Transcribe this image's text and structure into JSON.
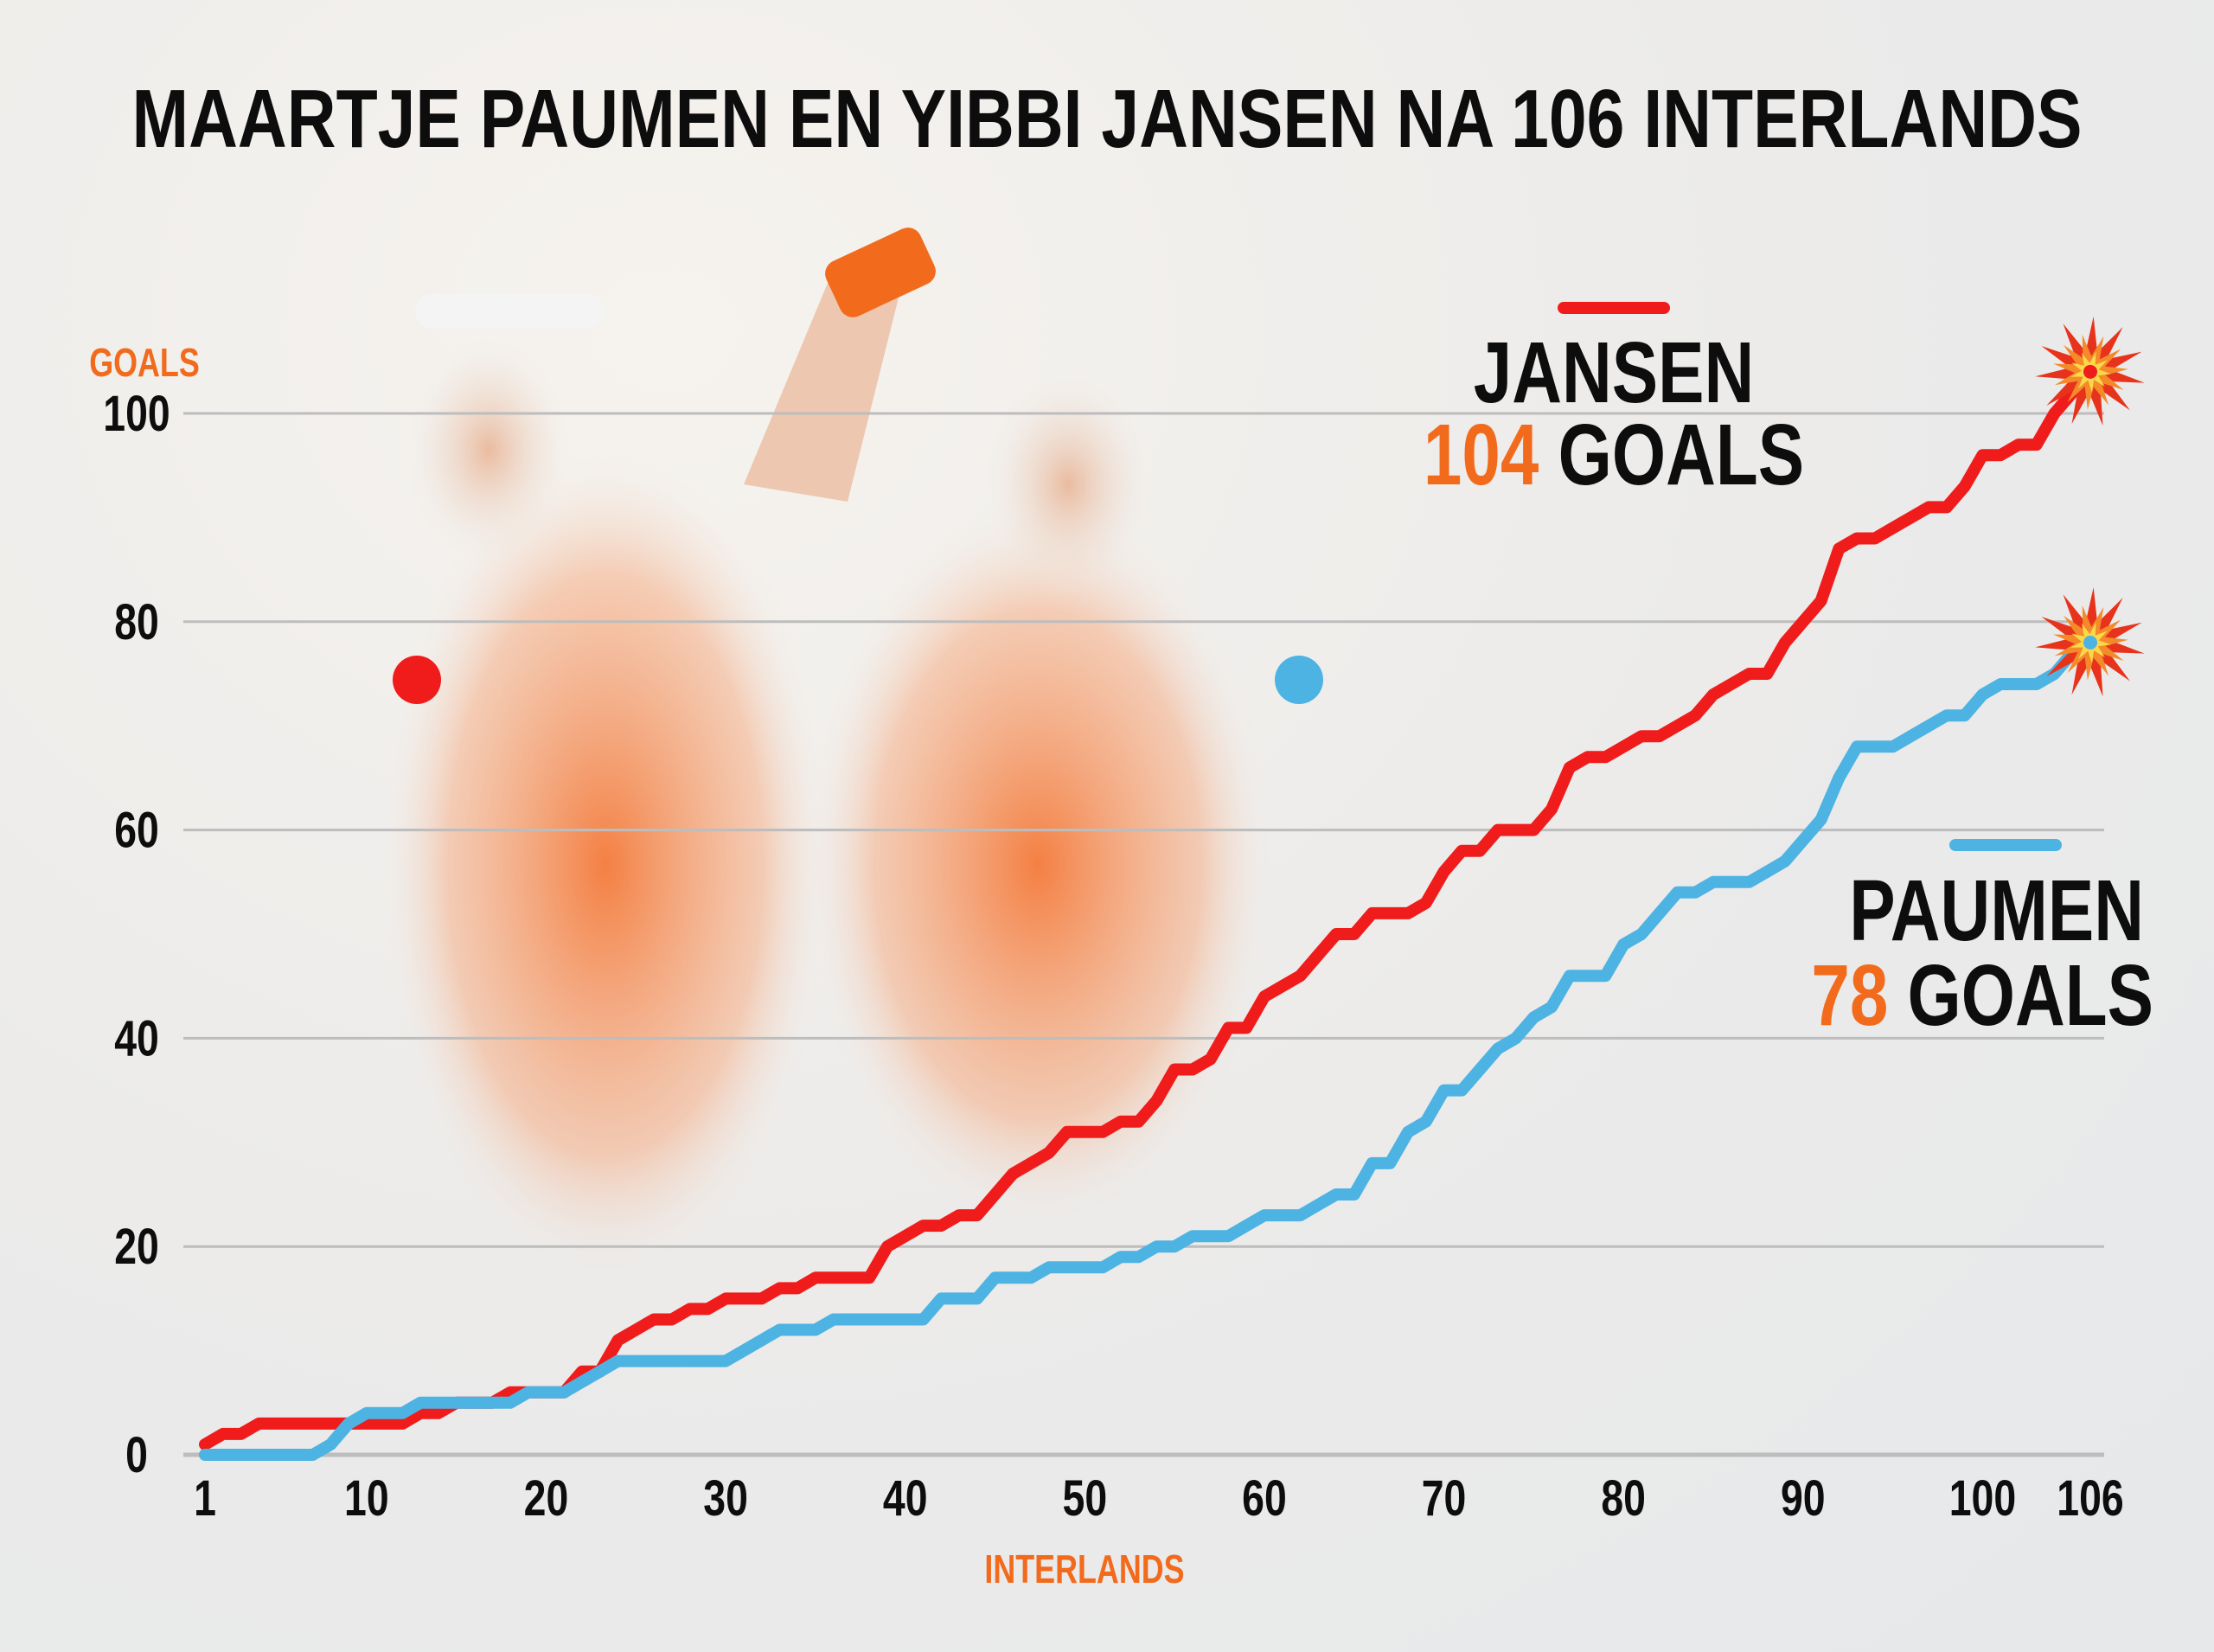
{
  "chart_data": {
    "type": "line",
    "title": "MAARTJE PAUMEN EN YIBBI JANSEN NA 106 INTERLANDS",
    "ylabel": "GOALS",
    "xlabel": "INTERLANDS",
    "ylim": [
      0,
      100
    ],
    "xlim": [
      1,
      106
    ],
    "yticks": [
      "0",
      "20",
      "40",
      "60",
      "80",
      "100"
    ],
    "xticks": [
      "1",
      "10",
      "20",
      "30",
      "40",
      "50",
      "60",
      "70",
      "80",
      "90",
      "100",
      "106"
    ],
    "grid": true,
    "series": [
      {
        "name": "JANSEN",
        "total": "104",
        "goals_label": "GOALS",
        "color": "#f01c1c",
        "values": [
          1,
          2,
          2,
          3,
          3,
          3,
          3,
          3,
          3,
          3,
          3,
          3,
          4,
          4,
          5,
          5,
          5,
          6,
          6,
          6,
          6,
          8,
          8,
          11,
          12,
          13,
          13,
          14,
          14,
          15,
          15,
          15,
          16,
          16,
          17,
          17,
          17,
          17,
          20,
          21,
          22,
          22,
          23,
          23,
          25,
          27,
          28,
          29,
          31,
          31,
          31,
          32,
          32,
          34,
          37,
          37,
          38,
          41,
          41,
          44,
          45,
          46,
          48,
          50,
          50,
          52,
          52,
          52,
          53,
          56,
          58,
          58,
          60,
          60,
          60,
          62,
          66,
          67,
          67,
          68,
          69,
          69,
          70,
          71,
          73,
          74,
          75,
          75,
          78,
          80,
          82,
          87,
          88,
          88,
          89,
          90,
          91,
          91,
          93,
          96,
          96,
          97,
          97,
          100,
          102,
          104
        ]
      },
      {
        "name": "PAUMEN",
        "total": "78",
        "goals_label": "GOALS",
        "color": "#4db3e2",
        "values": [
          0,
          0,
          0,
          0,
          0,
          0,
          0,
          1,
          3,
          4,
          4,
          4,
          5,
          5,
          5,
          5,
          5,
          5,
          6,
          6,
          6,
          7,
          8,
          9,
          9,
          9,
          9,
          9,
          9,
          9,
          10,
          11,
          12,
          12,
          12,
          13,
          13,
          13,
          13,
          13,
          13,
          15,
          15,
          15,
          17,
          17,
          17,
          18,
          18,
          18,
          18,
          19,
          19,
          20,
          20,
          21,
          21,
          21,
          22,
          23,
          23,
          23,
          24,
          25,
          25,
          28,
          28,
          31,
          32,
          35,
          35,
          37,
          39,
          40,
          42,
          43,
          46,
          46,
          46,
          49,
          50,
          52,
          54,
          54,
          55,
          55,
          55,
          56,
          57,
          59,
          61,
          65,
          68,
          68,
          68,
          69,
          70,
          71,
          71,
          73,
          74,
          74,
          74,
          75,
          77,
          78
        ]
      }
    ]
  },
  "colors": {
    "accent": "#f26b1d",
    "jansen": "#f01c1c",
    "paumen": "#4db3e2",
    "text": "#0d0d0d",
    "grid": "#bdbdbd"
  }
}
